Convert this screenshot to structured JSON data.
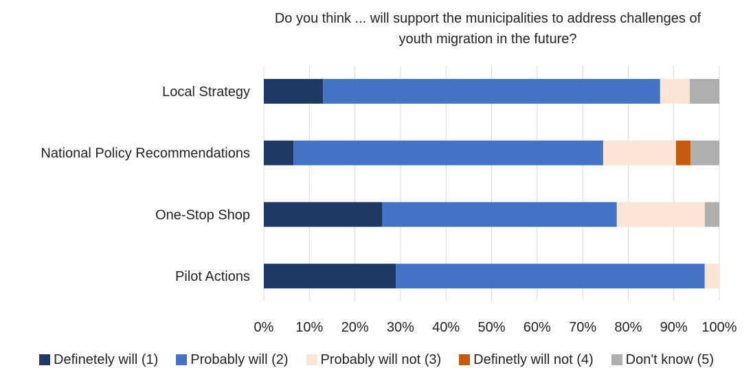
{
  "chart_data": {
    "type": "bar",
    "orientation": "horizontal",
    "stacked": "percent",
    "title_lines": [
      "Do you think ... will support the municipalities to address challenges of",
      "youth migration in the future?"
    ],
    "categories": [
      "Local Strategy",
      "National Policy Recommendations",
      "One-Stop Shop",
      "Pilot Actions"
    ],
    "x_ticks": [
      "0%",
      "10%",
      "20%",
      "30%",
      "40%",
      "50%",
      "60%",
      "70%",
      "80%",
      "90%",
      "100%"
    ],
    "xlim": [
      0,
      100
    ],
    "grid": "vertical",
    "legend_position": "bottom",
    "series": [
      {
        "name": "Definetely will (1)",
        "color": "#1f3864",
        "values": [
          13,
          6.5,
          26,
          29
        ]
      },
      {
        "name": "Probably will (2)",
        "color": "#4472c4",
        "values": [
          74,
          68,
          51.5,
          67.8
        ]
      },
      {
        "name": "Probably will not (3)",
        "color": "#fbe5d6",
        "values": [
          6.5,
          16,
          19.3,
          3.2
        ]
      },
      {
        "name": "Definetly will not (4)",
        "color": "#c55a11",
        "values": [
          0,
          3.2,
          0,
          0
        ]
      },
      {
        "name": "Don't know (5)",
        "color": "#afafb0",
        "values": [
          6.5,
          6.3,
          3.2,
          0
        ]
      }
    ]
  }
}
